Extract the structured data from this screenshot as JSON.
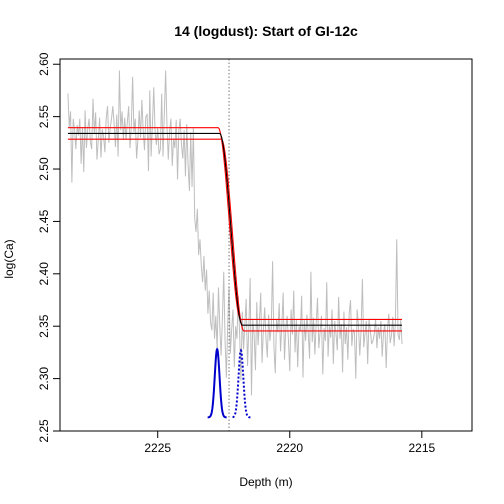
{
  "chart_data": {
    "type": "line",
    "title": "14 (logdust): Start of GI-12c",
    "xlabel": "Depth (m)",
    "ylabel": "log(Ca)",
    "xlim": [
      2228.7,
      2213.1
    ],
    "ylim": [
      2.25,
      2.605
    ],
    "x_ticks": [
      2225,
      2220,
      2215
    ],
    "x_tick_labels": [
      "2225",
      "2220",
      "2215"
    ],
    "y_ticks": [
      2.25,
      2.3,
      2.35,
      2.4,
      2.45,
      2.5,
      2.55,
      2.6
    ],
    "y_tick_labels": [
      "2.25",
      "2.30",
      "2.35",
      "2.40",
      "2.45",
      "2.50",
      "2.55",
      "2.60"
    ],
    "grid": false,
    "legend": "none",
    "colors": {
      "observations": "#bebebe",
      "fit": "#000000",
      "bands": "#ff0000",
      "transition_density": "#0000cd",
      "vline": "#555555"
    },
    "transition_marker_depth": 2222.3,
    "data_series": {
      "name": "",
      "x_start": 2228.4,
      "x_step": -0.05,
      "values": [
        2.572,
        2.54,
        2.555,
        2.487,
        2.548,
        2.538,
        2.519,
        2.542,
        2.532,
        2.548,
        2.505,
        2.54,
        2.497,
        2.556,
        2.52,
        2.538,
        2.548,
        2.526,
        2.519,
        2.567,
        2.534,
        2.554,
        2.509,
        2.528,
        2.549,
        2.511,
        2.538,
        2.531,
        2.516,
        2.549,
        2.56,
        2.525,
        2.539,
        2.548,
        2.56,
        2.543,
        2.521,
        2.552,
        2.512,
        2.594,
        2.537,
        2.555,
        2.528,
        2.549,
        2.528,
        2.545,
        2.56,
        2.52,
        2.542,
        2.588,
        2.535,
        2.548,
        2.51,
        2.528,
        2.556,
        2.53,
        2.566,
        2.537,
        2.518,
        2.55,
        2.552,
        2.498,
        2.575,
        2.512,
        2.543,
        2.578,
        2.536,
        2.523,
        2.54,
        2.514,
        2.519,
        2.572,
        2.512,
        2.553,
        2.594,
        2.542,
        2.509,
        2.536,
        2.548,
        2.503,
        2.529,
        2.52,
        2.547,
        2.49,
        2.537,
        2.548,
        2.523,
        2.51,
        2.537,
        2.493,
        2.543,
        2.504,
        2.479,
        2.535,
        2.483,
        2.54,
        2.453,
        2.44,
        2.462,
        2.418,
        2.433,
        2.408,
        2.392,
        2.417,
        2.384,
        2.404,
        2.362,
        2.384,
        2.354,
        2.346,
        2.382,
        2.338,
        2.36,
        2.328,
        2.387,
        2.35,
        2.322,
        2.358,
        2.402,
        2.336,
        2.301,
        2.352,
        2.388,
        2.324,
        2.347,
        2.366,
        2.311,
        2.35,
        2.338,
        2.379,
        2.344,
        2.298,
        2.364,
        2.328,
        2.352,
        2.376,
        2.312,
        2.348,
        2.396,
        2.284,
        2.356,
        2.342,
        2.308,
        2.373,
        2.332,
        2.354,
        2.382,
        2.315,
        2.346,
        2.368,
        2.338,
        2.32,
        2.361,
        2.336,
        2.349,
        2.412,
        2.331,
        2.305,
        2.357,
        2.344,
        2.372,
        2.326,
        2.351,
        2.382,
        2.318,
        2.348,
        2.36,
        2.336,
        2.307,
        2.366,
        2.342,
        2.384,
        2.325,
        2.356,
        2.311,
        2.35,
        2.345,
        2.379,
        2.301,
        2.356,
        2.336,
        2.361,
        2.343,
        2.319,
        2.402,
        2.335,
        2.358,
        2.323,
        2.352,
        2.377,
        2.329,
        2.345,
        2.36,
        2.304,
        2.348,
        2.336,
        2.392,
        2.321,
        2.35,
        2.339,
        2.366,
        2.314,
        2.355,
        2.343,
        2.327,
        2.378,
        2.338,
        2.352,
        2.306,
        2.364,
        2.333,
        2.349,
        2.318,
        2.362,
        2.375,
        2.331,
        2.347,
        2.344,
        2.3,
        2.366,
        2.351,
        2.322,
        2.346,
        2.395,
        2.33,
        2.343,
        2.355,
        2.314,
        2.357,
        2.346,
        2.333,
        2.336,
        2.343,
        2.357,
        2.329,
        2.349,
        2.338,
        2.355,
        2.321,
        2.344,
        2.352,
        2.31,
        2.347,
        2.362,
        2.334,
        2.341,
        2.359,
        2.331,
        2.354,
        2.433,
        2.342,
        2.337,
        2.356,
        2.333
      ]
    },
    "fit_curve": {
      "name": "",
      "pre_level": 2.534,
      "post_level": 2.351,
      "transition_start": 2222.65,
      "transition_end": 2221.8,
      "band_offset": 0.0055
    },
    "density_curves": [
      {
        "name": "",
        "center": 2222.75,
        "sigma": 0.09,
        "peak": 2.328,
        "base": 2.263,
        "style": "solid"
      },
      {
        "name": "",
        "center": 2221.85,
        "sigma": 0.09,
        "peak": 2.327,
        "base": 2.263,
        "style": "dotted"
      }
    ]
  }
}
